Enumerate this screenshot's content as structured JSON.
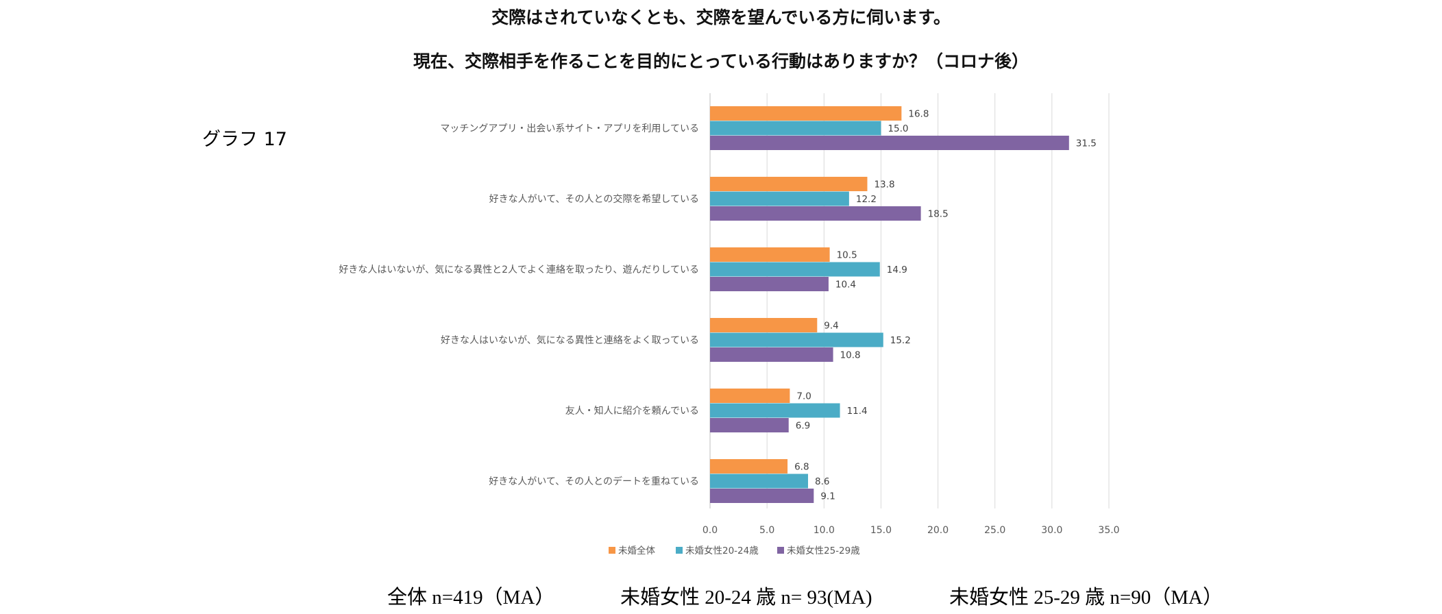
{
  "title_line1": "交際はされていなくとも、交際を望んでいる方に伺います。",
  "title_line2": "現在、交際相手を作ることを目的にとっている行動はありますか？（コロナ後）",
  "graph_label": "グラフ 17",
  "chart_data": {
    "type": "bar",
    "orientation": "horizontal",
    "categories": [
      "マッチングアプリ・出会い系サイト・アプリを利用している",
      "好きな人がいて、その人との交際を希望している",
      "好きな人はいないが、気になる異性と2人でよく連絡を取ったり、遊んだりしている",
      "好きな人はいないが、気になる異性と連絡をよく取っている",
      "友人・知人に紹介を頼んでいる",
      "好きな人がいて、その人とのデートを重ねている"
    ],
    "series": [
      {
        "name": "未婚全体",
        "color": "#f79646",
        "values": [
          16.8,
          13.8,
          10.5,
          9.4,
          7.0,
          6.8
        ]
      },
      {
        "name": "未婚女性20-24歳",
        "color": "#4bacc6",
        "values": [
          15.0,
          12.2,
          14.9,
          15.2,
          11.4,
          8.6
        ]
      },
      {
        "name": "未婚女性25-29歳",
        "color": "#8064a2",
        "values": [
          31.5,
          18.5,
          10.4,
          10.8,
          6.9,
          9.1
        ]
      }
    ],
    "xlim": [
      0,
      35
    ],
    "xticks": [
      "0.0",
      "5.0",
      "10.0",
      "15.0",
      "20.0",
      "25.0",
      "30.0",
      "35.0"
    ],
    "grid": true,
    "legend": "bottom"
  },
  "footer_notes": [
    "全体 n=419（MA）",
    "未婚女性 20-24 歳 n= 93(MA)",
    "未婚女性 25-29 歳 n=90（MA）"
  ]
}
